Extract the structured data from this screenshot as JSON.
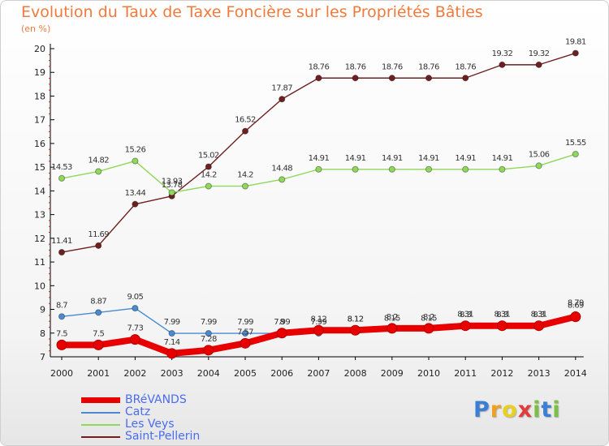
{
  "title": "Evolution du Taux de Taxe Foncière sur les Propriétés Bâties",
  "unit_label": "(en %)",
  "logo": {
    "letters": [
      "P",
      "r",
      "o",
      "x",
      "i",
      "t",
      "i"
    ],
    "colors": [
      "#3b7fd4",
      "#f0a020",
      "#e8d020",
      "#e23b3b",
      "#7ac143",
      "#3b7fd4",
      "#7ac143"
    ]
  },
  "chart_data": {
    "type": "line",
    "title": "Evolution du Taux de Taxe Foncière sur les Propriétés Bâties",
    "ylabel": "(en %)",
    "categories": [
      "2000",
      "2001",
      "2002",
      "2003",
      "2004",
      "2005",
      "2006",
      "2007",
      "2008",
      "2009",
      "2010",
      "2011",
      "2012",
      "2013",
      "2014"
    ],
    "yticks": [
      "7",
      "8",
      "9",
      "10",
      "11",
      "12",
      "13",
      "14",
      "15",
      "16",
      "17",
      "18",
      "19",
      "20"
    ],
    "ylim": [
      7,
      20
    ],
    "series": [
      {
        "name": "BRéVANDS",
        "color": "#e80000",
        "values": [
          7.5,
          7.5,
          7.73,
          7.14,
          7.28,
          7.57,
          8,
          8.12,
          8.12,
          8.2,
          8.2,
          8.31,
          8.31,
          8.31,
          8.69
        ],
        "labels": [
          "7.5",
          "7.5",
          "7.73",
          "7.14",
          "7.28",
          "7.57",
          "8",
          "8.12",
          "8.12",
          "8.2",
          "8.2",
          "8.31",
          "8.31",
          "8.31",
          "8.69"
        ]
      },
      {
        "name": "Catz",
        "color": "#4a8ad0",
        "values": [
          8.7,
          8.87,
          9.05,
          7.99,
          7.99,
          7.99,
          7.99,
          7.99,
          8.12,
          8.15,
          8.15,
          8.3,
          8.3,
          8.3,
          8.79
        ],
        "labels": [
          "8.7",
          "8.87",
          "9.05",
          "7.99",
          "7.99",
          "7.99",
          "7.99",
          "7.99",
          "8.12",
          "8.15",
          "8.15",
          "8.3",
          "8.3",
          "8.3",
          "8.79"
        ]
      },
      {
        "name": "Les Veys",
        "color": "#8fd85a",
        "values": [
          14.53,
          14.82,
          15.26,
          13.93,
          14.2,
          14.2,
          14.48,
          14.91,
          14.91,
          14.91,
          14.91,
          14.91,
          14.91,
          15.06,
          15.55
        ],
        "labels": [
          "14.53",
          "14.82",
          "15.26",
          "13.93",
          "14.2",
          "14.2",
          "14.48",
          "14.91",
          "14.91",
          "14.91",
          "14.91",
          "14.91",
          "14.91",
          "15.06",
          "15.55"
        ]
      },
      {
        "name": "Saint-Pellerin",
        "color": "#6e1f1f",
        "values": [
          11.41,
          11.69,
          13.44,
          13.78,
          15.02,
          16.52,
          17.87,
          18.76,
          18.76,
          18.76,
          18.76,
          18.76,
          19.32,
          19.32,
          19.81
        ],
        "labels": [
          "11.41",
          "11.69",
          "13.44",
          "13.78",
          "15.02",
          "16.52",
          "17.87",
          "18.76",
          "18.76",
          "18.76",
          "18.76",
          "18.76",
          "19.32",
          "19.32",
          "19.81"
        ]
      }
    ],
    "legend": "bottom-left"
  }
}
